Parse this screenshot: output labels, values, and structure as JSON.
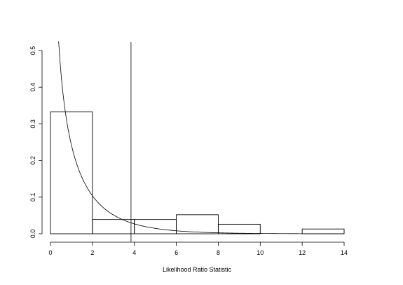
{
  "chart_data": {
    "type": "bar",
    "xlabel": "Likelihood Ratio Statistic",
    "ylabel": "",
    "xlim": [
      0,
      14
    ],
    "ylim": [
      0,
      0.5
    ],
    "x_ticks": [
      "0",
      "2",
      "4",
      "6",
      "8",
      "10",
      "12",
      "14"
    ],
    "y_ticks": [
      "0.0",
      "0.1",
      "0.2",
      "0.3",
      "0.4",
      "0.5"
    ],
    "bins": [
      {
        "from": 0,
        "to": 2,
        "density": 0.333
      },
      {
        "from": 2,
        "to": 4,
        "density": 0.039
      },
      {
        "from": 4,
        "to": 6,
        "density": 0.039
      },
      {
        "from": 6,
        "to": 8,
        "density": 0.052
      },
      {
        "from": 8,
        "to": 10,
        "density": 0.026
      },
      {
        "from": 10,
        "to": 12,
        "density": 0.0
      },
      {
        "from": 12,
        "to": 14,
        "density": 0.013
      }
    ],
    "overlay_curve": {
      "distribution": "chi-squared",
      "df": 1
    },
    "reference_line_x": 3.84
  }
}
